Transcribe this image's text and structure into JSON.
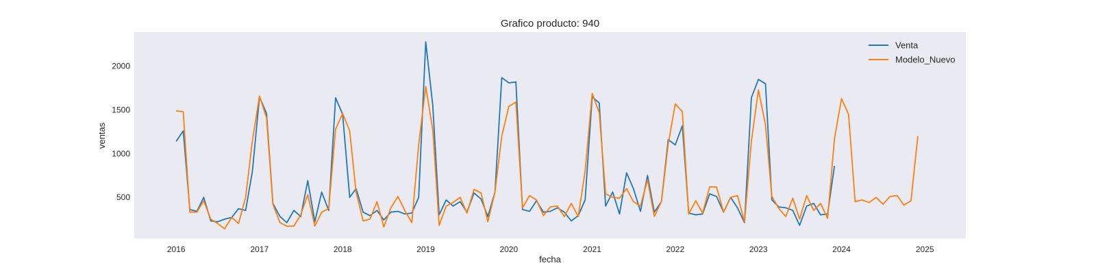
{
  "chart_data": {
    "type": "line",
    "title": "Grafico producto: 940",
    "xlabel": "fecha",
    "ylabel": "ventas",
    "x_range": [
      "2015-07-01",
      "2025-06-30"
    ],
    "ylim": [
      30,
      2390
    ],
    "x_ticks": [
      "2016",
      "2017",
      "2018",
      "2019",
      "2020",
      "2021",
      "2022",
      "2023",
      "2024",
      "2025"
    ],
    "y_ticks": [
      500,
      1000,
      1500,
      2000
    ],
    "grid": false,
    "legend_position": "top-right",
    "background": "#eaeaf2",
    "series": [
      {
        "name": "Venta",
        "color": "#1f77b4",
        "x": [
          "2016-01-01",
          "2016-02-01",
          "2016-03-01",
          "2016-04-01",
          "2016-05-01",
          "2016-06-01",
          "2016-07-01",
          "2016-08-01",
          "2016-09-01",
          "2016-10-01",
          "2016-11-01",
          "2016-12-01",
          "2017-01-01",
          "2017-02-01",
          "2017-03-01",
          "2017-04-01",
          "2017-05-01",
          "2017-06-01",
          "2017-07-01",
          "2017-08-01",
          "2017-09-01",
          "2017-10-01",
          "2017-11-01",
          "2017-12-01",
          "2018-01-01",
          "2018-02-01",
          "2018-03-01",
          "2018-04-01",
          "2018-05-01",
          "2018-06-01",
          "2018-07-01",
          "2018-08-01",
          "2018-09-01",
          "2018-10-01",
          "2018-11-01",
          "2018-12-01",
          "2019-01-01",
          "2019-02-01",
          "2019-03-01",
          "2019-04-01",
          "2019-05-01",
          "2019-06-01",
          "2019-07-01",
          "2019-08-01",
          "2019-09-01",
          "2019-10-01",
          "2019-11-01",
          "2019-12-01",
          "2020-01-01",
          "2020-02-01",
          "2020-03-01",
          "2020-04-01",
          "2020-05-01",
          "2020-06-01",
          "2020-07-01",
          "2020-08-01",
          "2020-09-01",
          "2020-10-01",
          "2020-11-01",
          "2020-12-01",
          "2021-01-01",
          "2021-02-01",
          "2021-03-01",
          "2021-04-01",
          "2021-05-01",
          "2021-06-01",
          "2021-07-01",
          "2021-08-01",
          "2021-09-01",
          "2021-10-01",
          "2021-11-01",
          "2021-12-01",
          "2022-01-01",
          "2022-02-01",
          "2022-03-01",
          "2022-04-01",
          "2022-05-01",
          "2022-06-01",
          "2022-07-01",
          "2022-08-01",
          "2022-09-01",
          "2022-10-01",
          "2022-11-01",
          "2022-12-01",
          "2023-01-01",
          "2023-02-01",
          "2023-03-01",
          "2023-04-01",
          "2023-05-01",
          "2023-06-01",
          "2023-07-01",
          "2023-08-01",
          "2023-09-01",
          "2023-10-01",
          "2023-11-01",
          "2023-12-01"
        ],
        "values": [
          1140,
          1260,
          360,
          340,
          500,
          230,
          220,
          250,
          270,
          370,
          350,
          800,
          1650,
          1460,
          430,
          280,
          210,
          350,
          280,
          690,
          220,
          560,
          350,
          1640,
          1450,
          500,
          600,
          330,
          290,
          350,
          240,
          330,
          340,
          310,
          320,
          500,
          2280,
          1550,
          300,
          470,
          400,
          450,
          330,
          550,
          480,
          280,
          560,
          1870,
          1810,
          1820,
          360,
          340,
          460,
          330,
          340,
          380,
          330,
          230,
          290,
          470,
          1650,
          1580,
          400,
          560,
          310,
          780,
          600,
          340,
          750,
          330,
          450,
          1160,
          1100,
          1320,
          320,
          300,
          310,
          540,
          510,
          330,
          500,
          380,
          210,
          1640,
          1850,
          1800,
          470,
          390,
          380,
          350,
          180,
          400,
          430,
          300,
          310,
          860
        ]
      },
      {
        "name": "Modelo_Nuevo",
        "color": "#ff7f0e",
        "x": [
          "2016-01-01",
          "2016-02-01",
          "2016-03-01",
          "2016-04-01",
          "2016-05-01",
          "2016-06-01",
          "2016-07-01",
          "2016-08-01",
          "2016-09-01",
          "2016-10-01",
          "2016-11-01",
          "2016-12-01",
          "2017-01-01",
          "2017-02-01",
          "2017-03-01",
          "2017-04-01",
          "2017-05-01",
          "2017-06-01",
          "2017-07-01",
          "2017-08-01",
          "2017-09-01",
          "2017-10-01",
          "2017-11-01",
          "2017-12-01",
          "2018-01-01",
          "2018-02-01",
          "2018-03-01",
          "2018-04-01",
          "2018-05-01",
          "2018-06-01",
          "2018-07-01",
          "2018-08-01",
          "2018-09-01",
          "2018-10-01",
          "2018-11-01",
          "2018-12-01",
          "2019-01-01",
          "2019-02-01",
          "2019-03-01",
          "2019-04-01",
          "2019-05-01",
          "2019-06-01",
          "2019-07-01",
          "2019-08-01",
          "2019-09-01",
          "2019-10-01",
          "2019-11-01",
          "2019-12-01",
          "2020-01-01",
          "2020-02-01",
          "2020-03-01",
          "2020-04-01",
          "2020-05-01",
          "2020-06-01",
          "2020-07-01",
          "2020-08-01",
          "2020-09-01",
          "2020-10-01",
          "2020-11-01",
          "2020-12-01",
          "2021-01-01",
          "2021-02-01",
          "2021-03-01",
          "2021-04-01",
          "2021-05-01",
          "2021-06-01",
          "2021-07-01",
          "2021-08-01",
          "2021-09-01",
          "2021-10-01",
          "2021-11-01",
          "2021-12-01",
          "2022-01-01",
          "2022-02-01",
          "2022-03-01",
          "2022-04-01",
          "2022-05-01",
          "2022-06-01",
          "2022-07-01",
          "2022-08-01",
          "2022-09-01",
          "2022-10-01",
          "2022-11-01",
          "2022-12-01",
          "2023-01-01",
          "2023-02-01",
          "2023-03-01",
          "2023-04-01",
          "2023-05-01",
          "2023-06-01",
          "2023-07-01",
          "2023-08-01",
          "2023-09-01",
          "2023-10-01",
          "2023-11-01",
          "2023-12-01",
          "2024-01-01",
          "2024-02-01",
          "2024-03-01",
          "2024-04-01",
          "2024-05-01",
          "2024-06-01",
          "2024-07-01",
          "2024-08-01",
          "2024-09-01",
          "2024-10-01",
          "2024-11-01",
          "2024-12-01"
        ],
        "values": [
          1490,
          1480,
          330,
          330,
          460,
          250,
          200,
          140,
          270,
          200,
          500,
          1150,
          1660,
          1410,
          420,
          210,
          170,
          170,
          300,
          530,
          170,
          330,
          370,
          1280,
          1460,
          1260,
          560,
          230,
          250,
          450,
          160,
          380,
          510,
          350,
          210,
          1100,
          1770,
          1270,
          180,
          400,
          440,
          500,
          320,
          590,
          550,
          220,
          560,
          1200,
          1540,
          1590,
          380,
          520,
          470,
          290,
          390,
          400,
          280,
          430,
          280,
          800,
          1690,
          1470,
          540,
          500,
          490,
          600,
          450,
          400,
          700,
          280,
          450,
          1110,
          1570,
          1480,
          310,
          460,
          320,
          620,
          620,
          330,
          500,
          520,
          220,
          1140,
          1730,
          1330,
          510,
          370,
          280,
          490,
          250,
          520,
          350,
          430,
          260,
          1170,
          1630,
          1450,
          450,
          470,
          440,
          500,
          420,
          510,
          520,
          410,
          460,
          1200
        ]
      }
    ]
  }
}
